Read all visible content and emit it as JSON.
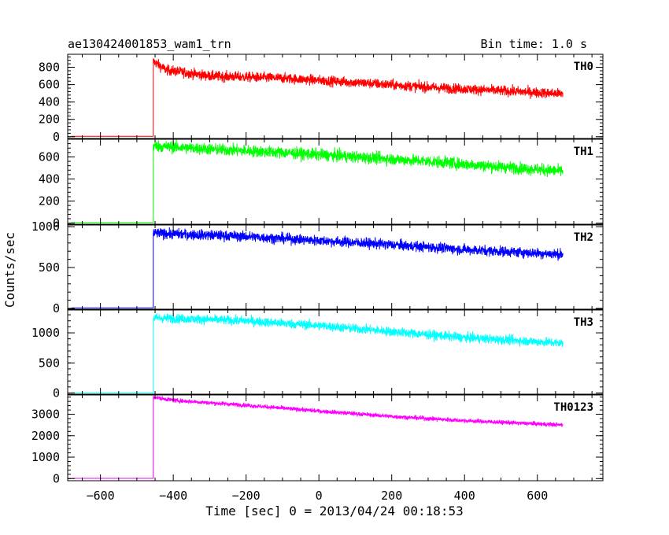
{
  "header": {
    "title": "ae130424001853_wam1_trn",
    "bin_time": "Bin time: 1.0 s"
  },
  "chart_data": {
    "type": "line",
    "xlabel": "Time [sec] 0 = 2013/04/24 00:18:53",
    "ylabel": "Counts/sec",
    "xlim": [
      -690,
      780
    ],
    "x_ticks": [
      -600,
      -400,
      -200,
      0,
      200,
      400,
      600
    ],
    "x_start": -680,
    "x_end": 670,
    "rise_time": -455,
    "panels": [
      {
        "name": "TH0",
        "color": "#ff0000",
        "ylim": [
          -20,
          950
        ],
        "y_ticks": [
          0,
          200,
          400,
          600,
          800
        ],
        "baseline": 5,
        "level_points": [
          [
            -455,
            870
          ],
          [
            -420,
            770
          ],
          [
            -300,
            700
          ],
          [
            -100,
            675
          ],
          [
            100,
            625
          ],
          [
            300,
            570
          ],
          [
            500,
            530
          ],
          [
            670,
            495
          ]
        ],
        "noise": 42
      },
      {
        "name": "TH1",
        "color": "#00ff00",
        "ylim": [
          -10,
          760
        ],
        "y_ticks": [
          0,
          200,
          400,
          600
        ],
        "baseline": 5,
        "level_points": [
          [
            -455,
            700
          ],
          [
            -300,
            670
          ],
          [
            -100,
            640
          ],
          [
            100,
            600
          ],
          [
            300,
            560
          ],
          [
            500,
            510
          ],
          [
            670,
            470
          ]
        ],
        "noise": 38
      },
      {
        "name": "TH2",
        "color": "#0000ff",
        "ylim": [
          -10,
          1020
        ],
        "y_ticks": [
          0,
          500,
          1000
        ],
        "baseline": 5,
        "level_points": [
          [
            -455,
            920
          ],
          [
            -200,
            880
          ],
          [
            0,
            830
          ],
          [
            200,
            780
          ],
          [
            400,
            720
          ],
          [
            670,
            660
          ]
        ],
        "noise": 45
      },
      {
        "name": "TH3",
        "color": "#00ffff",
        "ylim": [
          -20,
          1380
        ],
        "y_ticks": [
          0,
          500,
          1000
        ],
        "baseline": 5,
        "level_points": [
          [
            -455,
            1250
          ],
          [
            -200,
            1200
          ],
          [
            0,
            1120
          ],
          [
            200,
            1020
          ],
          [
            400,
            920
          ],
          [
            670,
            830
          ]
        ],
        "noise": 55
      },
      {
        "name": "TH0123",
        "color": "#ff00ff",
        "ylim": [
          -100,
          3900
        ],
        "y_ticks": [
          0,
          1000,
          2000,
          3000
        ],
        "baseline": 10,
        "level_points": [
          [
            -455,
            3800
          ],
          [
            -400,
            3650
          ],
          [
            -200,
            3420
          ],
          [
            0,
            3150
          ],
          [
            200,
            2900
          ],
          [
            400,
            2700
          ],
          [
            670,
            2500
          ]
        ],
        "noise": 70
      }
    ]
  }
}
